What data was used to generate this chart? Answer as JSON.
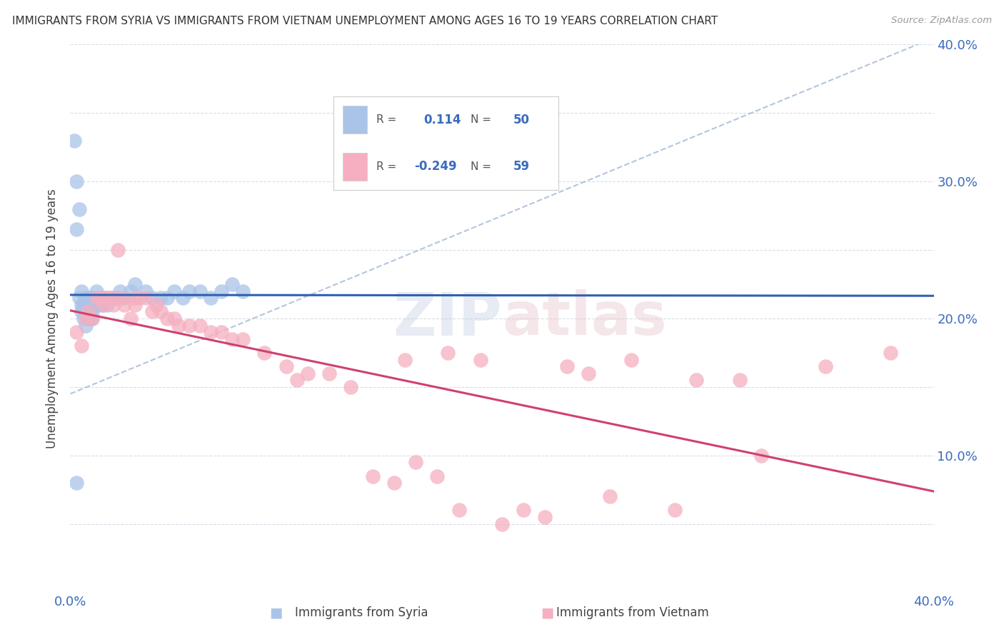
{
  "title": "IMMIGRANTS FROM SYRIA VS IMMIGRANTS FROM VIETNAM UNEMPLOYMENT AMONG AGES 16 TO 19 YEARS CORRELATION CHART",
  "source": "Source: ZipAtlas.com",
  "ylabel": "Unemployment Among Ages 16 to 19 years",
  "xlim": [
    0.0,
    0.4
  ],
  "ylim": [
    0.0,
    0.4
  ],
  "xtick_pos": [
    0.0,
    0.05,
    0.1,
    0.15,
    0.2,
    0.25,
    0.3,
    0.35,
    0.4
  ],
  "ytick_pos": [
    0.0,
    0.05,
    0.1,
    0.15,
    0.2,
    0.25,
    0.3,
    0.35,
    0.4
  ],
  "ytick_labels_right": [
    "",
    "",
    "10.0%",
    "",
    "20.0%",
    "",
    "30.0%",
    "",
    "40.0%"
  ],
  "xtick_labels": [
    "0.0%",
    "",
    "",
    "",
    "",
    "",
    "",
    "",
    "40.0%"
  ],
  "watermark": "ZIPatlas",
  "legend_syria_r": "0.114",
  "legend_syria_n": "50",
  "legend_vietnam_r": "-0.249",
  "legend_vietnam_n": "59",
  "syria_color": "#aac4e8",
  "vietnam_color": "#f5afc0",
  "syria_line_color": "#3060b0",
  "vietnam_line_color": "#d04070",
  "dashed_line_color": "#a0b8d8",
  "grid_color": "#d8dde8",
  "background_color": "#ffffff",
  "syria_x": [
    0.002,
    0.003,
    0.003,
    0.004,
    0.004,
    0.005,
    0.005,
    0.005,
    0.006,
    0.006,
    0.007,
    0.007,
    0.008,
    0.008,
    0.009,
    0.009,
    0.01,
    0.01,
    0.01,
    0.011,
    0.011,
    0.012,
    0.012,
    0.013,
    0.014,
    0.015,
    0.015,
    0.016,
    0.017,
    0.018,
    0.02,
    0.021,
    0.022,
    0.023,
    0.025,
    0.028,
    0.03,
    0.035,
    0.038,
    0.042,
    0.045,
    0.048,
    0.052,
    0.055,
    0.06,
    0.065,
    0.07,
    0.075,
    0.08,
    0.003
  ],
  "syria_y": [
    0.33,
    0.3,
    0.265,
    0.215,
    0.28,
    0.21,
    0.205,
    0.22,
    0.2,
    0.21,
    0.195,
    0.215,
    0.2,
    0.215,
    0.205,
    0.2,
    0.2,
    0.205,
    0.215,
    0.215,
    0.21,
    0.215,
    0.22,
    0.21,
    0.215,
    0.215,
    0.21,
    0.215,
    0.21,
    0.215,
    0.215,
    0.215,
    0.215,
    0.22,
    0.215,
    0.22,
    0.225,
    0.22,
    0.215,
    0.215,
    0.215,
    0.22,
    0.215,
    0.22,
    0.22,
    0.215,
    0.22,
    0.225,
    0.22,
    0.08
  ],
  "vietnam_x": [
    0.003,
    0.005,
    0.007,
    0.008,
    0.01,
    0.012,
    0.014,
    0.015,
    0.016,
    0.018,
    0.02,
    0.02,
    0.022,
    0.024,
    0.025,
    0.028,
    0.03,
    0.03,
    0.032,
    0.035,
    0.038,
    0.04,
    0.042,
    0.045,
    0.048,
    0.05,
    0.055,
    0.06,
    0.065,
    0.07,
    0.075,
    0.08,
    0.09,
    0.1,
    0.105,
    0.11,
    0.12,
    0.13,
    0.14,
    0.15,
    0.155,
    0.16,
    0.17,
    0.175,
    0.18,
    0.19,
    0.2,
    0.21,
    0.22,
    0.23,
    0.24,
    0.25,
    0.26,
    0.28,
    0.29,
    0.31,
    0.32,
    0.35,
    0.38
  ],
  "vietnam_y": [
    0.19,
    0.18,
    0.2,
    0.205,
    0.2,
    0.215,
    0.215,
    0.21,
    0.215,
    0.215,
    0.215,
    0.21,
    0.25,
    0.215,
    0.21,
    0.2,
    0.21,
    0.215,
    0.215,
    0.215,
    0.205,
    0.21,
    0.205,
    0.2,
    0.2,
    0.195,
    0.195,
    0.195,
    0.19,
    0.19,
    0.185,
    0.185,
    0.175,
    0.165,
    0.155,
    0.16,
    0.16,
    0.15,
    0.085,
    0.08,
    0.17,
    0.095,
    0.085,
    0.175,
    0.06,
    0.17,
    0.05,
    0.06,
    0.055,
    0.165,
    0.16,
    0.07,
    0.17,
    0.06,
    0.155,
    0.155,
    0.1,
    0.165,
    0.175
  ]
}
